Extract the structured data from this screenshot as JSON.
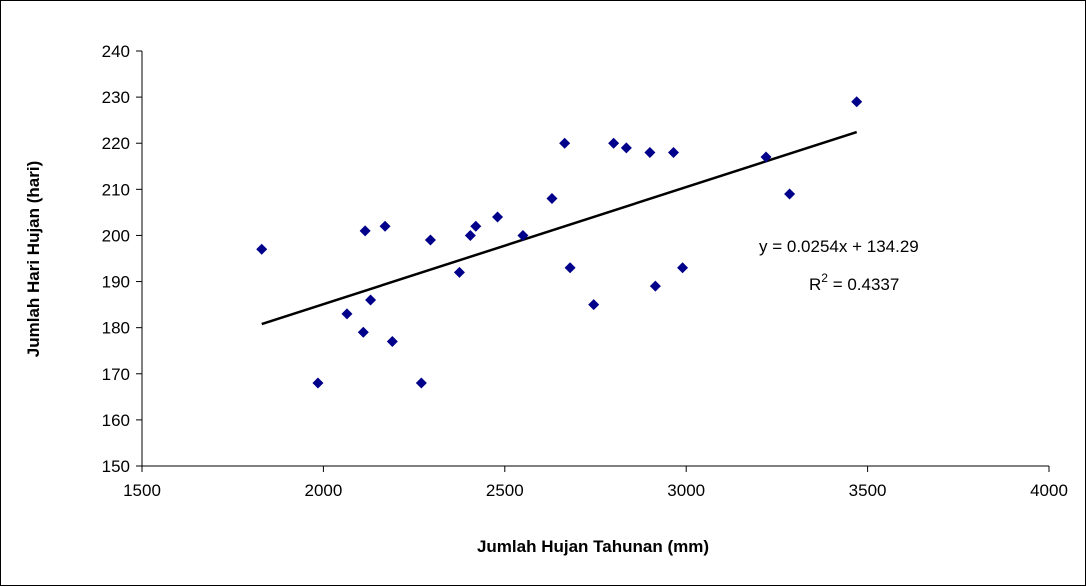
{
  "chart_data": {
    "type": "scatter",
    "xlabel": "Jumlah Hujan Tahunan (mm)",
    "ylabel": "Jumlah Hari Hujan (hari)",
    "xlim": [
      1500,
      4000
    ],
    "ylim": [
      150,
      240
    ],
    "x_ticks": [
      "1500",
      "2000",
      "2500",
      "3000",
      "3500",
      "4000"
    ],
    "y_ticks": [
      "150",
      "160",
      "170",
      "180",
      "190",
      "200",
      "210",
      "220",
      "230",
      "240"
    ],
    "grid": false,
    "legend": "none",
    "marker_color": "#00008b",
    "trendline_color": "#000000",
    "points": [
      {
        "x": 1830,
        "y": 197
      },
      {
        "x": 1985,
        "y": 168
      },
      {
        "x": 2065,
        "y": 183
      },
      {
        "x": 2110,
        "y": 179
      },
      {
        "x": 2115,
        "y": 201
      },
      {
        "x": 2130,
        "y": 186
      },
      {
        "x": 2170,
        "y": 202
      },
      {
        "x": 2190,
        "y": 177
      },
      {
        "x": 2270,
        "y": 168
      },
      {
        "x": 2295,
        "y": 199
      },
      {
        "x": 2375,
        "y": 192
      },
      {
        "x": 2405,
        "y": 200
      },
      {
        "x": 2420,
        "y": 202
      },
      {
        "x": 2480,
        "y": 204
      },
      {
        "x": 2550,
        "y": 200
      },
      {
        "x": 2630,
        "y": 208
      },
      {
        "x": 2665,
        "y": 220
      },
      {
        "x": 2680,
        "y": 193
      },
      {
        "x": 2745,
        "y": 185
      },
      {
        "x": 2800,
        "y": 220
      },
      {
        "x": 2835,
        "y": 219
      },
      {
        "x": 2900,
        "y": 218
      },
      {
        "x": 2915,
        "y": 189
      },
      {
        "x": 2965,
        "y": 218
      },
      {
        "x": 2990,
        "y": 193
      },
      {
        "x": 3220,
        "y": 217
      },
      {
        "x": 3285,
        "y": 209
      },
      {
        "x": 3470,
        "y": 229
      }
    ],
    "trendline": {
      "slope": 0.0254,
      "intercept": 134.29,
      "x_range": [
        1830,
        3470
      ],
      "equation": "y = 0.0254x + 134.29",
      "r2_prefix": "R",
      "r2_exp": "2",
      "r2_value": " = 0.4337"
    }
  }
}
